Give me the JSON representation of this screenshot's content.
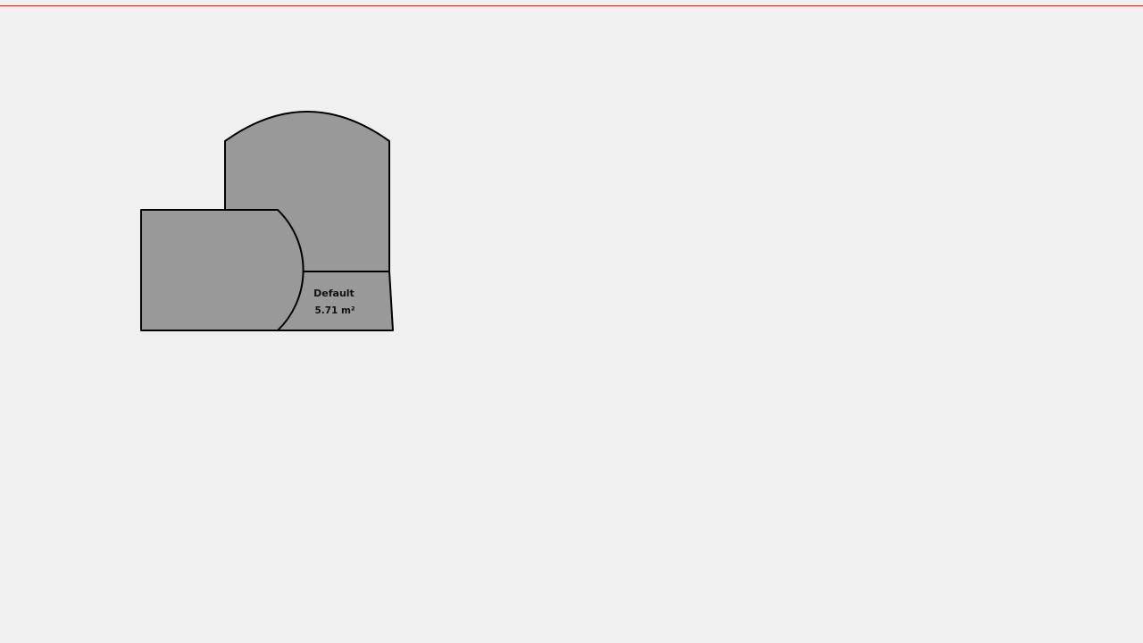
{
  "canvas": {
    "background_color": "#f0f0f0",
    "guide_line_color": "#d42a2a"
  },
  "room": {
    "name": "Default",
    "area": "5.71 m²",
    "fill_color": "#999999",
    "outline_color": "#000000"
  }
}
